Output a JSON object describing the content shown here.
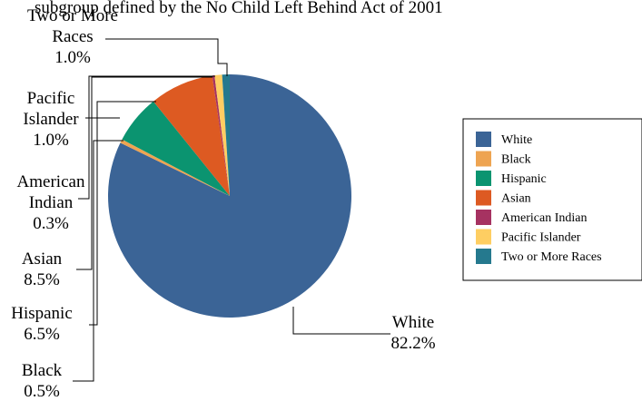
{
  "chart_data": {
    "type": "pie",
    "title": "subgroup defined by the No Child Left Behind Act of 2001",
    "slices": [
      {
        "name": "White",
        "value": 82.2,
        "label": "82.2%",
        "color": "#3b6496"
      },
      {
        "name": "Black",
        "value": 0.5,
        "label": "0.5%",
        "color": "#eea451"
      },
      {
        "name": "Hispanic",
        "value": 6.5,
        "label": "6.5%",
        "color": "#0b9470"
      },
      {
        "name": "Asian",
        "value": 8.5,
        "label": "8.5%",
        "color": "#dd5a22"
      },
      {
        "name": "American Indian",
        "value": 0.3,
        "label": "0.3%",
        "color": "#a63261"
      },
      {
        "name": "Pacific Islander",
        "value": 1.0,
        "label": "1.0%",
        "color": "#fece62"
      },
      {
        "name": "Two or More Races",
        "value": 1.0,
        "label": "1.0%",
        "color": "#25798e"
      }
    ],
    "slice_label_lines": {
      "White": [
        "White"
      ],
      "Black": [
        "Black"
      ],
      "Hispanic": [
        "Hispanic"
      ],
      "Asian": [
        "Asian"
      ],
      "American Indian": [
        "American",
        "Indian"
      ],
      "Pacific Islander": [
        "Pacific",
        "Islander"
      ],
      "Two or More Races": [
        "Two or More",
        "Races"
      ]
    },
    "legend": {
      "placement": "right",
      "entries": [
        "White",
        "Black",
        "Hispanic",
        "Asian",
        "American Indian",
        "Pacific Islander",
        "Two or More Races"
      ]
    }
  }
}
